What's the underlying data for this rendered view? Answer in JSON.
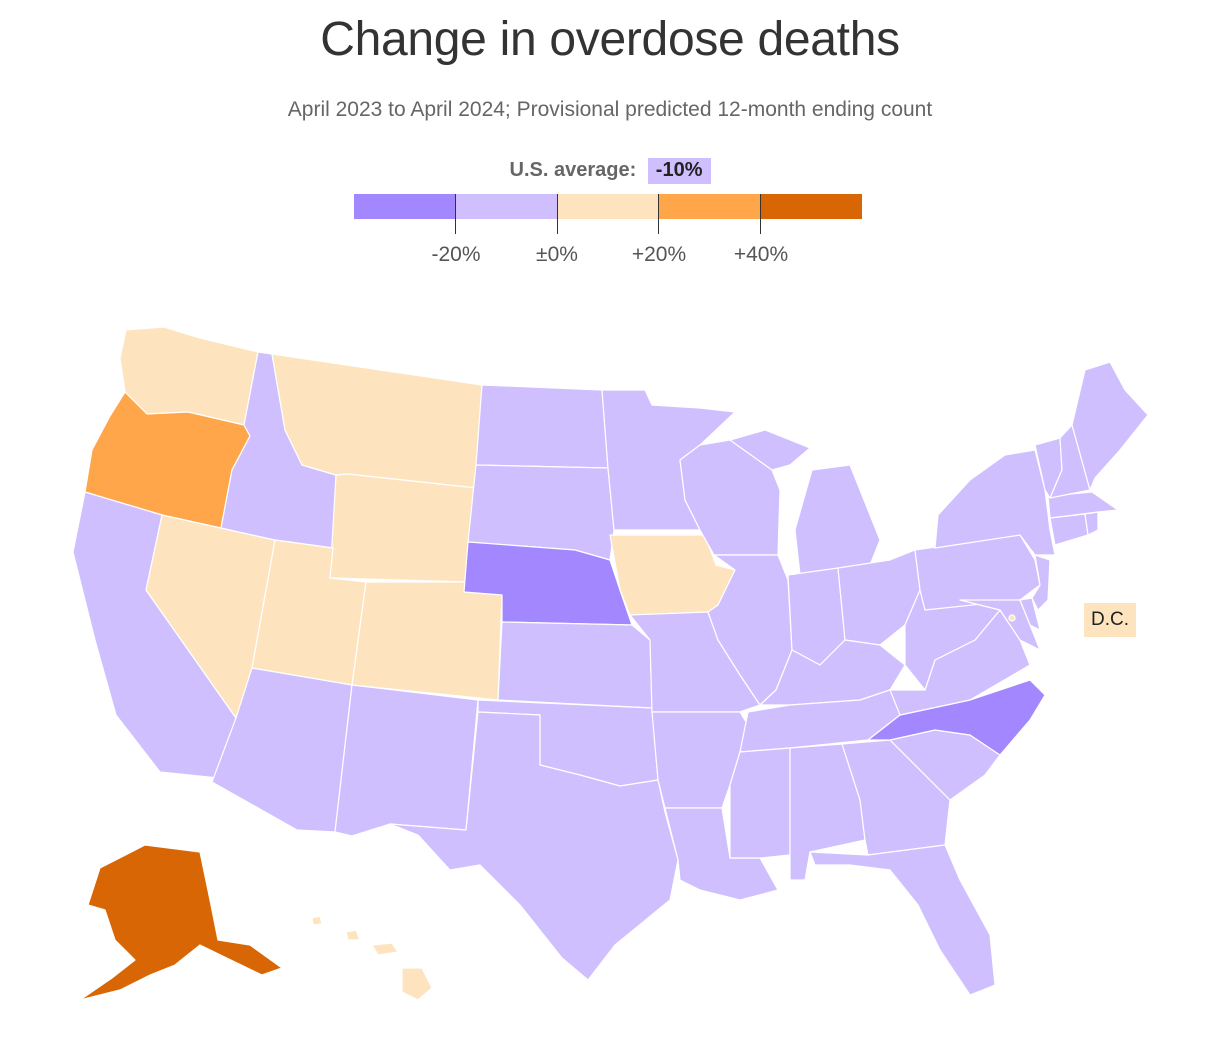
{
  "title": "Change in overdose deaths",
  "subtitle": "April 2023 to April 2024; Provisional predicted 12-month ending count",
  "us_average": {
    "label": "U.S. average:",
    "value": "-10%"
  },
  "legend": {
    "colors": [
      "#a287ff",
      "#cfbfff",
      "#fde4bf",
      "#ffa54a",
      "#d96604"
    ],
    "breaks": [
      "-20%",
      "±0%",
      "+20%",
      "+40%"
    ]
  },
  "bins": {
    "decrease_gt_20": "#a287ff",
    "decrease_0_20": "#cfbfff",
    "increase_0_20": "#fde4bf",
    "increase_20_40": "#ffa54a",
    "increase_gt_40": "#d96604"
  },
  "state_bins": {
    "Washington": "increase_0_20",
    "Oregon": "increase_20_40",
    "California": "decrease_0_20",
    "Nevada": "increase_0_20",
    "Idaho": "decrease_0_20",
    "Montana": "increase_0_20",
    "Wyoming": "increase_0_20",
    "Utah": "increase_0_20",
    "Colorado": "increase_0_20",
    "Arizona": "decrease_0_20",
    "New Mexico": "decrease_0_20",
    "North Dakota": "decrease_0_20",
    "South Dakota": "decrease_0_20",
    "Nebraska": "decrease_gt_20",
    "Kansas": "decrease_0_20",
    "Oklahoma": "decrease_0_20",
    "Texas": "decrease_0_20",
    "Minnesota": "decrease_0_20",
    "Iowa": "increase_0_20",
    "Missouri": "decrease_0_20",
    "Arkansas": "decrease_0_20",
    "Louisiana": "decrease_0_20",
    "Wisconsin": "decrease_0_20",
    "Illinois": "decrease_0_20",
    "Michigan": "decrease_0_20",
    "Indiana": "decrease_0_20",
    "Ohio": "decrease_0_20",
    "Kentucky": "decrease_0_20",
    "Tennessee": "decrease_0_20",
    "Mississippi": "decrease_0_20",
    "Alabama": "decrease_0_20",
    "Georgia": "decrease_0_20",
    "Florida": "decrease_0_20",
    "South Carolina": "decrease_0_20",
    "North Carolina": "decrease_gt_20",
    "Virginia": "decrease_0_20",
    "West Virginia": "decrease_0_20",
    "Maryland": "decrease_0_20",
    "Delaware": "decrease_0_20",
    "New Jersey": "decrease_0_20",
    "Pennsylvania": "decrease_0_20",
    "New York": "decrease_0_20",
    "Connecticut": "decrease_0_20",
    "Rhode Island": "decrease_0_20",
    "Massachusetts": "decrease_0_20",
    "Vermont": "decrease_0_20",
    "New Hampshire": "decrease_0_20",
    "Maine": "decrease_0_20",
    "Alaska": "increase_gt_40",
    "Hawaii": "increase_0_20",
    "District of Columbia": "increase_0_20"
  },
  "dc_label": "D.C."
}
